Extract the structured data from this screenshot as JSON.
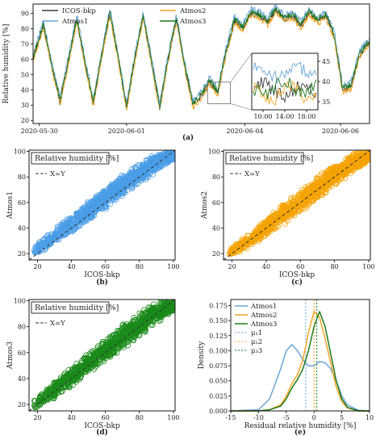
{
  "chart_data": [
    {
      "type": "line",
      "panel_label": "(a)",
      "ylabel": "Relative humidity [%]",
      "x_ticks": [
        "2020-05-30",
        "2020-06-01",
        "2020-06-04",
        "2020-06-06"
      ],
      "x_range_days": [
        0,
        8.1
      ],
      "y_ticks": [
        20,
        30,
        40,
        50,
        60,
        70,
        80,
        90
      ],
      "ylim": [
        18,
        96
      ],
      "series": [
        {
          "name": "ICOS-bkp",
          "color": "#3d3d3d"
        },
        {
          "name": "Atmos1",
          "color": "#6aa6d8"
        },
        {
          "name": "Atmos2",
          "color": "#f5a623"
        },
        {
          "name": "Atmos3",
          "color": "#1e7a1e"
        }
      ],
      "profile": {
        "t": [
          0,
          0.25,
          0.45,
          0.65,
          0.85,
          1.05,
          1.25,
          1.45,
          1.65,
          1.85,
          2.05,
          2.25,
          2.45,
          2.65,
          2.85,
          3.05,
          3.25,
          3.45,
          3.65,
          3.85,
          4.05,
          4.25,
          4.45,
          4.65,
          4.85,
          5.05,
          5.25,
          5.45,
          5.65,
          5.85,
          6.05,
          6.25,
          6.45,
          6.65,
          6.85,
          7.05,
          7.25,
          7.45,
          7.65,
          7.85,
          8.05
        ],
        "rh": [
          60,
          82,
          55,
          32,
          58,
          86,
          57,
          31,
          62,
          90,
          60,
          28,
          60,
          88,
          58,
          28,
          60,
          86,
          55,
          30,
          36,
          45,
          38,
          65,
          85,
          80,
          90,
          88,
          84,
          92,
          86,
          88,
          82,
          90,
          85,
          88,
          75,
          40,
          42,
          62,
          70
        ]
      },
      "inset": {
        "x_ticks": [
          "10:00",
          "14:00",
          "18:00"
        ],
        "y_ticks": [
          35,
          40,
          45
        ],
        "ylim": [
          33,
          47
        ]
      }
    },
    {
      "type": "scatter",
      "panel_label": "(b)",
      "title": "Relative humidity [%]",
      "xlabel": "ICOS-bkp",
      "ylabel": "Atmos1",
      "xlim": [
        15,
        101
      ],
      "ylim": [
        15,
        101
      ],
      "x_ticks": [
        20,
        40,
        60,
        80,
        100
      ],
      "y_ticks": [
        20,
        40,
        60,
        80,
        100
      ],
      "color": "#4a9de6",
      "band": {
        "x": [
          18,
          30,
          50,
          70,
          90,
          100
        ],
        "y_low": [
          18,
          27,
          45,
          64,
          84,
          93
        ],
        "y_high": [
          26,
          40,
          62,
          83,
          99,
          101
        ]
      },
      "reference_line": "X=Y"
    },
    {
      "type": "scatter",
      "panel_label": "(c)",
      "title": "Relative humidity [%]",
      "xlabel": "ICOS-bkp",
      "ylabel": "Atmos2",
      "xlim": [
        15,
        101
      ],
      "ylim": [
        15,
        101
      ],
      "x_ticks": [
        20,
        40,
        60,
        80,
        100
      ],
      "y_ticks": [
        20,
        40,
        60,
        80,
        100
      ],
      "color": "#f5a300",
      "band": {
        "x": [
          18,
          30,
          50,
          70,
          90,
          100
        ],
        "y_low": [
          16,
          24,
          42,
          62,
          82,
          92
        ],
        "y_high": [
          23,
          37,
          59,
          81,
          99,
          101
        ]
      },
      "reference_line": "X=Y"
    },
    {
      "type": "scatter",
      "panel_label": "(d)",
      "title": "Relative humidity [%]",
      "xlabel": "ICOS-bkp",
      "ylabel": "Atmos3",
      "xlim": [
        15,
        101
      ],
      "ylim": [
        15,
        101
      ],
      "x_ticks": [
        20,
        40,
        60,
        80,
        100
      ],
      "y_ticks": [
        20,
        40,
        60,
        80,
        100
      ],
      "color": "#1a8a1a",
      "band": {
        "x": [
          18,
          30,
          50,
          70,
          90,
          100
        ],
        "y_low": [
          16,
          24,
          43,
          62,
          82,
          92
        ],
        "y_high": [
          23,
          38,
          60,
          82,
          100,
          101
        ]
      },
      "reference_line": "X=Y"
    },
    {
      "type": "line",
      "panel_label": "(e)",
      "xlabel": "Residual relative humidity [%]",
      "ylabel": "Density",
      "xlim": [
        -15,
        10
      ],
      "ylim": [
        0,
        0.185
      ],
      "x_ticks": [
        -15,
        -10,
        -5,
        0,
        5,
        10
      ],
      "y_ticks": [
        0.0,
        0.025,
        0.05,
        0.075,
        0.1,
        0.125,
        0.15,
        0.175
      ],
      "x": [
        -15,
        -10,
        -8,
        -6,
        -5,
        -4,
        -3,
        -2,
        -1,
        0,
        1,
        2,
        3,
        4,
        5,
        6,
        8,
        10
      ],
      "series": [
        {
          "name": "Atmos1",
          "color": "#6aa6d8",
          "values": [
            0,
            0.002,
            0.02,
            0.07,
            0.1,
            0.11,
            0.1,
            0.085,
            0.075,
            0.075,
            0.082,
            0.08,
            0.07,
            0.05,
            0.025,
            0.01,
            0.001,
            0
          ]
        },
        {
          "name": "Atmos2",
          "color": "#f5a623",
          "values": [
            0,
            0,
            0.002,
            0.01,
            0.025,
            0.045,
            0.06,
            0.085,
            0.13,
            0.165,
            0.155,
            0.12,
            0.08,
            0.04,
            0.015,
            0.005,
            0,
            0
          ]
        },
        {
          "name": "Atmos3",
          "color": "#1e7a1e",
          "values": [
            0,
            0,
            0.002,
            0.008,
            0.02,
            0.038,
            0.052,
            0.07,
            0.1,
            0.14,
            0.165,
            0.14,
            0.095,
            0.05,
            0.02,
            0.006,
            0,
            0
          ]
        }
      ],
      "means": [
        {
          "name": "μ₁1",
          "color": "#6aa6d8",
          "value": -1.5
        },
        {
          "name": "μ₂2",
          "color": "#f5a623",
          "value": 0.0
        },
        {
          "name": "μ₃3",
          "color": "#1e7a1e",
          "value": 0.5
        }
      ]
    }
  ]
}
